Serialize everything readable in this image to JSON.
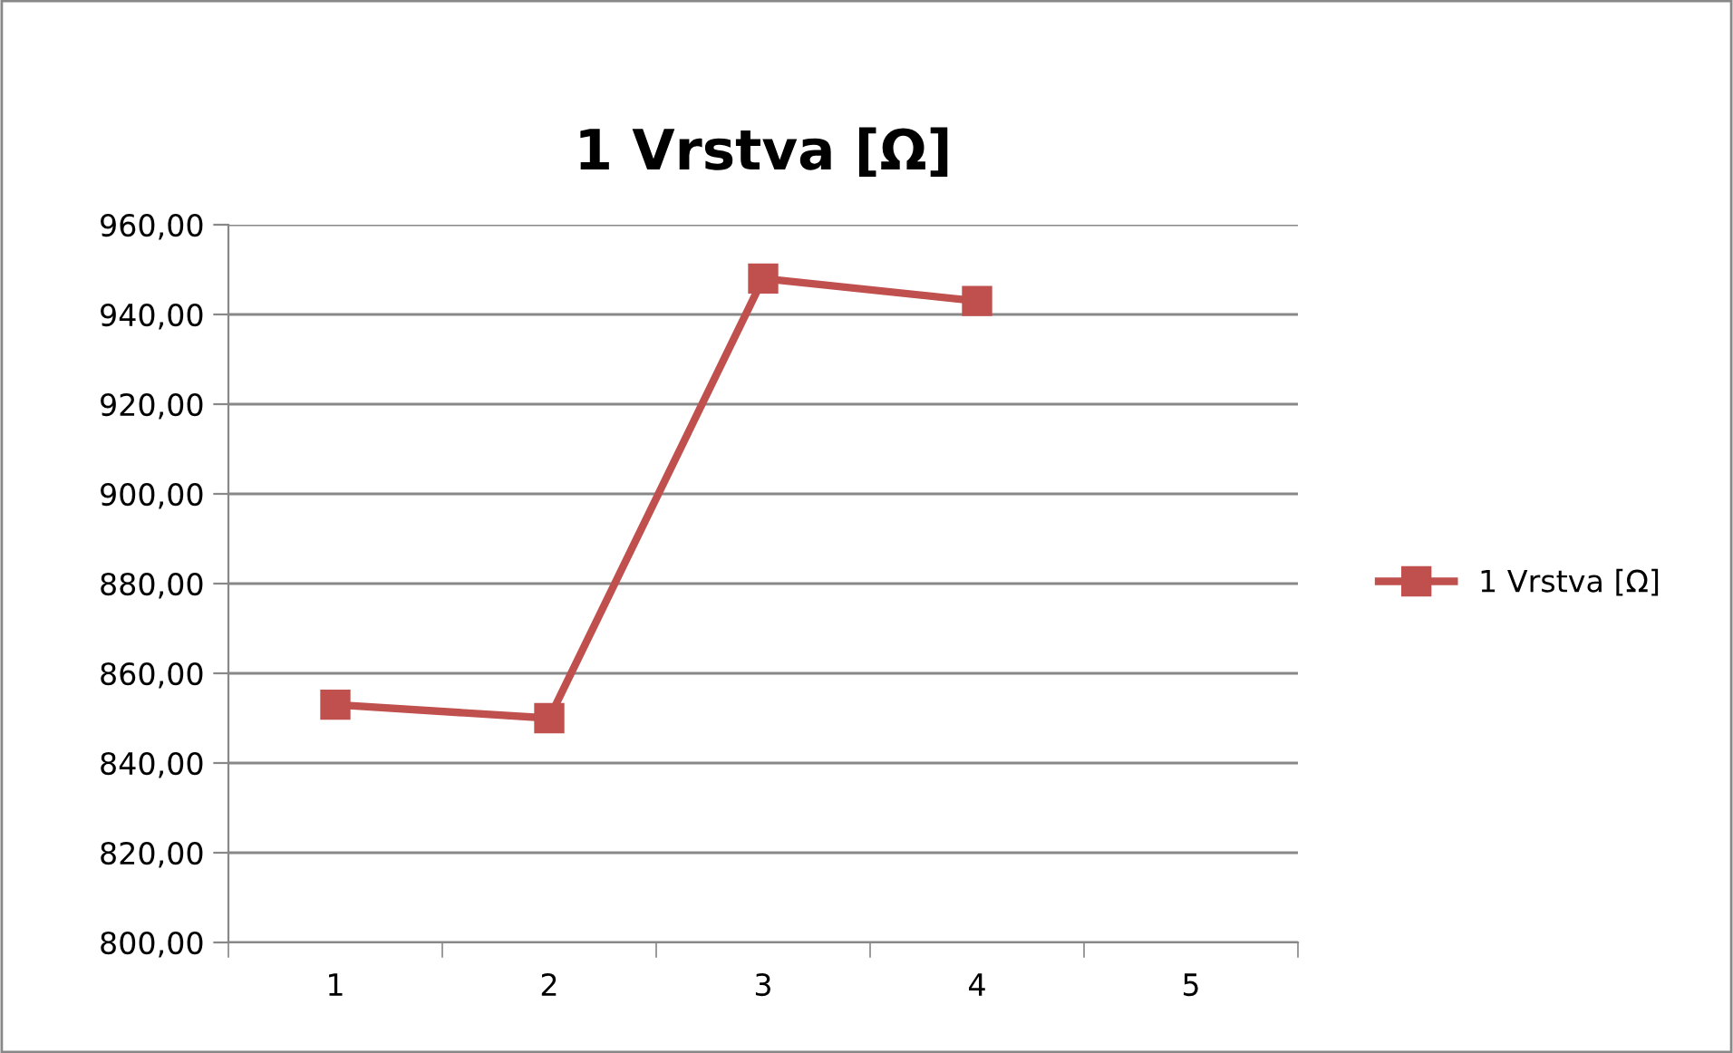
{
  "chart_data": {
    "type": "line",
    "title": "1 Vrstva [Ω]",
    "categories": [
      "1",
      "2",
      "3",
      "4",
      "5"
    ],
    "series": [
      {
        "name": "1 Vrstva [Ω]",
        "color": "#c0504d",
        "values": [
          853,
          850,
          948,
          943,
          null
        ]
      }
    ],
    "ylim": [
      800,
      960
    ],
    "yticks": [
      {
        "value": 800,
        "label": "800,00"
      },
      {
        "value": 820,
        "label": "820,00"
      },
      {
        "value": 840,
        "label": "840,00"
      },
      {
        "value": 860,
        "label": "860,00"
      },
      {
        "value": 880,
        "label": "880,00"
      },
      {
        "value": 900,
        "label": "900,00"
      },
      {
        "value": 920,
        "label": "920,00"
      },
      {
        "value": 940,
        "label": "940,00"
      },
      {
        "value": 960,
        "label": "960,00"
      }
    ],
    "grid": "y",
    "legend": "right",
    "marker": "square",
    "line_style": "solid"
  }
}
